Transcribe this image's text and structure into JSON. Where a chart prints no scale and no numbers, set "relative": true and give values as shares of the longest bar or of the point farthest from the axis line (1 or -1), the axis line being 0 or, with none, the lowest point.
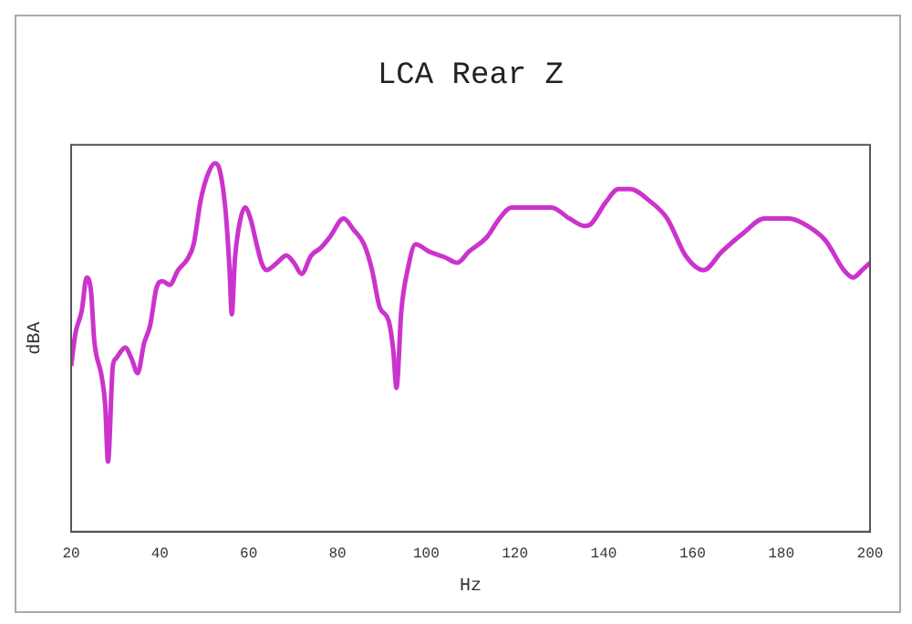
{
  "chart_data": {
    "type": "line",
    "title": "LCA Rear Z",
    "xlabel": "Hz",
    "ylabel": "dBA",
    "relative": true,
    "xlim": [
      20,
      200
    ],
    "xticks": [
      20,
      40,
      60,
      80,
      100,
      120,
      140,
      160,
      180,
      200
    ],
    "grid": false,
    "legend": false,
    "marker": "none",
    "line_style": "solid",
    "series": [
      {
        "color": "#cc33cc",
        "x": [
          20,
          21,
          22.4,
          23.5,
          24.5,
          25.2,
          26.9,
          27.7,
          28.3,
          29.4,
          30.1,
          32.2,
          33.6,
          35,
          36.4,
          37.8,
          39.2,
          40.6,
          42.2,
          44.1,
          46.2,
          47.6,
          49.2,
          50.8,
          52.4,
          53.4,
          54.8,
          55.7,
          56.2,
          56.9,
          58,
          59.2,
          60.4,
          61.8,
          62.9,
          64,
          66.4,
          68.5,
          70.2,
          71.9,
          74.1,
          76.2,
          78.3,
          81.4,
          83.6,
          86,
          87.8,
          89.5,
          91.6,
          92.6,
          93.3,
          94.4,
          95.8,
          97.6,
          100.7,
          104.2,
          107,
          109.6,
          113.7,
          116.5,
          119.2,
          122,
          128.2,
          132.3,
          135.7,
          137.1,
          140.5,
          143.3,
          146,
          150.1,
          154.3,
          158.4,
          162.5,
          166.6,
          171.4,
          176.2,
          181.7,
          185.9,
          190,
          194.1,
          196.2,
          198.2,
          200
        ],
        "values": [
          0.45,
          0.54,
          0.6,
          0.69,
          0.65,
          0.52,
          0.42,
          0.34,
          0.19,
          0.45,
          0.47,
          0.5,
          0.47,
          0.43,
          0.51,
          0.56,
          0.66,
          0.68,
          0.67,
          0.71,
          0.74,
          0.78,
          0.9,
          0.97,
          1,
          0.985,
          0.87,
          0.71,
          0.59,
          0.74,
          0.84,
          0.88,
          0.85,
          0.78,
          0.73,
          0.71,
          0.73,
          0.75,
          0.73,
          0.7,
          0.75,
          0.77,
          0.8,
          0.85,
          0.82,
          0.78,
          0.71,
          0.61,
          0.57,
          0.49,
          0.39,
          0.6,
          0.71,
          0.78,
          0.76,
          0.745,
          0.73,
          0.76,
          0.8,
          0.85,
          0.88,
          0.88,
          0.88,
          0.85,
          0.83,
          0.835,
          0.895,
          0.93,
          0.93,
          0.9,
          0.85,
          0.75,
          0.71,
          0.76,
          0.81,
          0.85,
          0.85,
          0.83,
          0.79,
          0.71,
          0.69,
          0.71,
          0.73
        ]
      }
    ]
  }
}
